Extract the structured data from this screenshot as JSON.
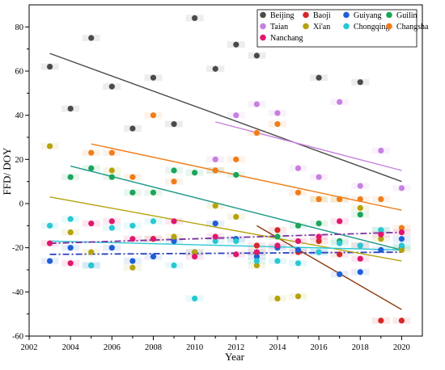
{
  "chart_data": {
    "type": "scatter",
    "xlabel": "Year",
    "ylabel": "FFD/ DOY",
    "xlim": [
      2002,
      2021
    ],
    "ylim": [
      -60,
      90
    ],
    "xticks": [
      2002,
      2004,
      2006,
      2008,
      2010,
      2012,
      2014,
      2016,
      2018,
      2020
    ],
    "yticks": [
      -60,
      -40,
      -20,
      0,
      20,
      40,
      60,
      80
    ],
    "grid": false,
    "legend_position": "top-right",
    "series": [
      {
        "name": "Beijing",
        "color": "#4a4a4a",
        "x": [
          2003,
          2004,
          2005,
          2006,
          2007,
          2008,
          2009,
          2010,
          2011,
          2012,
          2013,
          2016,
          2018
        ],
        "y": [
          62,
          43,
          75,
          53,
          34,
          57,
          36,
          84,
          61,
          72,
          67,
          57,
          55
        ],
        "trend": [
          [
            2003,
            68
          ],
          [
            2020,
            10
          ]
        ],
        "trend_style": "solid"
      },
      {
        "name": "Baoji",
        "color": "#d62728",
        "x": [
          2013,
          2014,
          2015,
          2016,
          2017,
          2018,
          2019,
          2020
        ],
        "y": [
          -19,
          -12,
          -22,
          -17,
          -23,
          -19,
          -53,
          -53
        ],
        "trend": [
          [
            2013,
            -10
          ],
          [
            2020,
            -48
          ]
        ],
        "trend_style": "solid",
        "trend_color": "#8b3a0f"
      },
      {
        "name": "Guiyang",
        "color": "#1f5fd6",
        "x": [
          2003,
          2004,
          2005,
          2006,
          2007,
          2008,
          2009,
          2010,
          2011,
          2012,
          2013,
          2014,
          2015,
          2016,
          2017,
          2018,
          2019,
          2020
        ],
        "y": [
          -26,
          -20,
          -28,
          -20,
          -26,
          -24,
          -17,
          -22,
          -9,
          -16,
          -24,
          -20,
          -21,
          -22,
          -32,
          -31,
          -21,
          -16
        ],
        "trend": [
          [
            2003,
            -23
          ],
          [
            2020,
            -22
          ]
        ],
        "trend_style": "dashdot",
        "trend_color": "#2a3fbf"
      },
      {
        "name": "Guilin",
        "color": "#1aa55a",
        "x": [
          2004,
          2005,
          2006,
          2007,
          2008,
          2009,
          2010,
          2011,
          2012,
          2013,
          2014,
          2015,
          2016,
          2017,
          2018,
          2019,
          2020
        ],
        "y": [
          12,
          16,
          12,
          5,
          5,
          15,
          14,
          15,
          13,
          -22,
          -15,
          -10,
          -9,
          -17,
          -5,
          -12,
          -20
        ],
        "trend": [
          [
            2004,
            17
          ],
          [
            2020,
            -21
          ]
        ],
        "trend_style": "solid",
        "trend_color": "#1d9a8a"
      },
      {
        "name": "Taian",
        "color": "#c77fe0",
        "x": [
          2011,
          2012,
          2013,
          2014,
          2015,
          2016,
          2017,
          2018,
          2019,
          2020
        ],
        "y": [
          20,
          40,
          45,
          41,
          16,
          12,
          46,
          8,
          24,
          7
        ],
        "trend": [
          [
            2011,
            37
          ],
          [
            2020,
            15
          ]
        ],
        "trend_style": "solid"
      },
      {
        "name": "Xi'an",
        "color": "#b5a20c",
        "x": [
          2003,
          2004,
          2005,
          2006,
          2007,
          2008,
          2009,
          2010,
          2011,
          2012,
          2013,
          2014,
          2015,
          2016,
          2017,
          2018,
          2019,
          2020
        ],
        "y": [
          26,
          -13,
          -22,
          15,
          -29,
          -16,
          -15,
          -22,
          -1,
          -6,
          -28,
          -43,
          -42,
          2,
          2,
          -2,
          -16,
          -21
        ],
        "trend": [
          [
            2003,
            3
          ],
          [
            2020,
            -26
          ]
        ],
        "trend_style": "solid"
      },
      {
        "name": "Chongqing",
        "color": "#27c8d4",
        "x": [
          2003,
          2004,
          2005,
          2006,
          2007,
          2008,
          2009,
          2010,
          2011,
          2012,
          2013,
          2014,
          2015,
          2016,
          2017,
          2018,
          2019,
          2020
        ],
        "y": [
          -10,
          -7,
          -28,
          -11,
          -10,
          -8,
          -28,
          -43,
          -17,
          -17,
          -26,
          -26,
          -27,
          -22,
          -18,
          -19,
          -12,
          -19
        ],
        "trend": [
          [
            2003,
            -17
          ],
          [
            2020,
            -21
          ]
        ],
        "trend_style": "solid"
      },
      {
        "name": "Changsha",
        "color": "#f07d1a",
        "x": [
          2005,
          2006,
          2007,
          2008,
          2009,
          2011,
          2012,
          2013,
          2014,
          2015,
          2016,
          2017,
          2018,
          2019,
          2020
        ],
        "y": [
          23,
          23,
          12,
          40,
          10,
          15,
          20,
          32,
          36,
          5,
          2,
          2,
          2,
          2,
          -11
        ],
        "trend": [
          [
            2005,
            27
          ],
          [
            2020,
            -3
          ]
        ],
        "trend_style": "solid"
      },
      {
        "name": "Nanchang",
        "color": "#e0176e",
        "x": [
          2003,
          2004,
          2005,
          2006,
          2007,
          2008,
          2009,
          2010,
          2011,
          2012,
          2013,
          2014,
          2015,
          2016,
          2017,
          2018,
          2019,
          2020
        ],
        "y": [
          -18,
          -27,
          -9,
          -8,
          -16,
          -16,
          -8,
          -24,
          -15,
          -23,
          -22,
          -19,
          -17,
          -15,
          -8,
          -25,
          -14,
          -13
        ],
        "trend": [
          [
            2003,
            -18
          ],
          [
            2020,
            -13
          ]
        ],
        "trend_style": "dashdot",
        "trend_color": "#7b2fa0"
      }
    ]
  }
}
